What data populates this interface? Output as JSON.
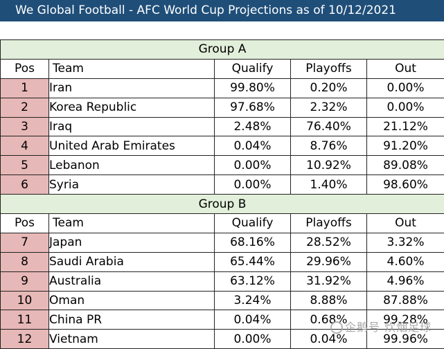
{
  "title": "We Global Football - AFC World Cup Projections as of 10/12/2021",
  "headers": [
    "Pos",
    "Team",
    "Qualify",
    "Playoffs",
    "Out"
  ],
  "groups": [
    {
      "name": "Group A",
      "rows": [
        {
          "pos": "1",
          "team": "Iran",
          "qualify": "99.80%",
          "playoffs": "0.20%",
          "out": "0.00%"
        },
        {
          "pos": "2",
          "team": "Korea Republic",
          "qualify": "97.68%",
          "playoffs": "2.32%",
          "out": "0.00%"
        },
        {
          "pos": "3",
          "team": "Iraq",
          "qualify": "2.48%",
          "playoffs": "76.40%",
          "out": "21.12%"
        },
        {
          "pos": "4",
          "team": "United Arab Emirates",
          "qualify": "0.04%",
          "playoffs": "8.76%",
          "out": "91.20%"
        },
        {
          "pos": "5",
          "team": "Lebanon",
          "qualify": "0.00%",
          "playoffs": "10.92%",
          "out": "89.08%"
        },
        {
          "pos": "6",
          "team": "Syria",
          "qualify": "0.00%",
          "playoffs": "1.40%",
          "out": "98.60%"
        }
      ]
    },
    {
      "name": "Group B",
      "rows": [
        {
          "pos": "7",
          "team": "Japan",
          "qualify": "68.16%",
          "playoffs": "28.52%",
          "out": "3.32%"
        },
        {
          "pos": "8",
          "team": "Saudi Arabia",
          "qualify": "65.44%",
          "playoffs": "29.96%",
          "out": "4.60%"
        },
        {
          "pos": "9",
          "team": "Australia",
          "qualify": "63.12%",
          "playoffs": "31.92%",
          "out": "4.96%"
        },
        {
          "pos": "10",
          "team": "Oman",
          "qualify": "3.24%",
          "playoffs": "8.88%",
          "out": "87.88%"
        },
        {
          "pos": "11",
          "team": "China PR",
          "qualify": "0.04%",
          "playoffs": "0.68%",
          "out": "99.28%"
        },
        {
          "pos": "12",
          "team": "Vietnam",
          "qualify": "0.00%",
          "playoffs": "0.04%",
          "out": "99.96%"
        }
      ]
    }
  ],
  "watermark": "企鹅号 炊烟足球",
  "colors": {
    "title_bg": "#1f4e79",
    "group_header_bg": "#e2efda",
    "pos_bg": "#e6b8b7"
  }
}
